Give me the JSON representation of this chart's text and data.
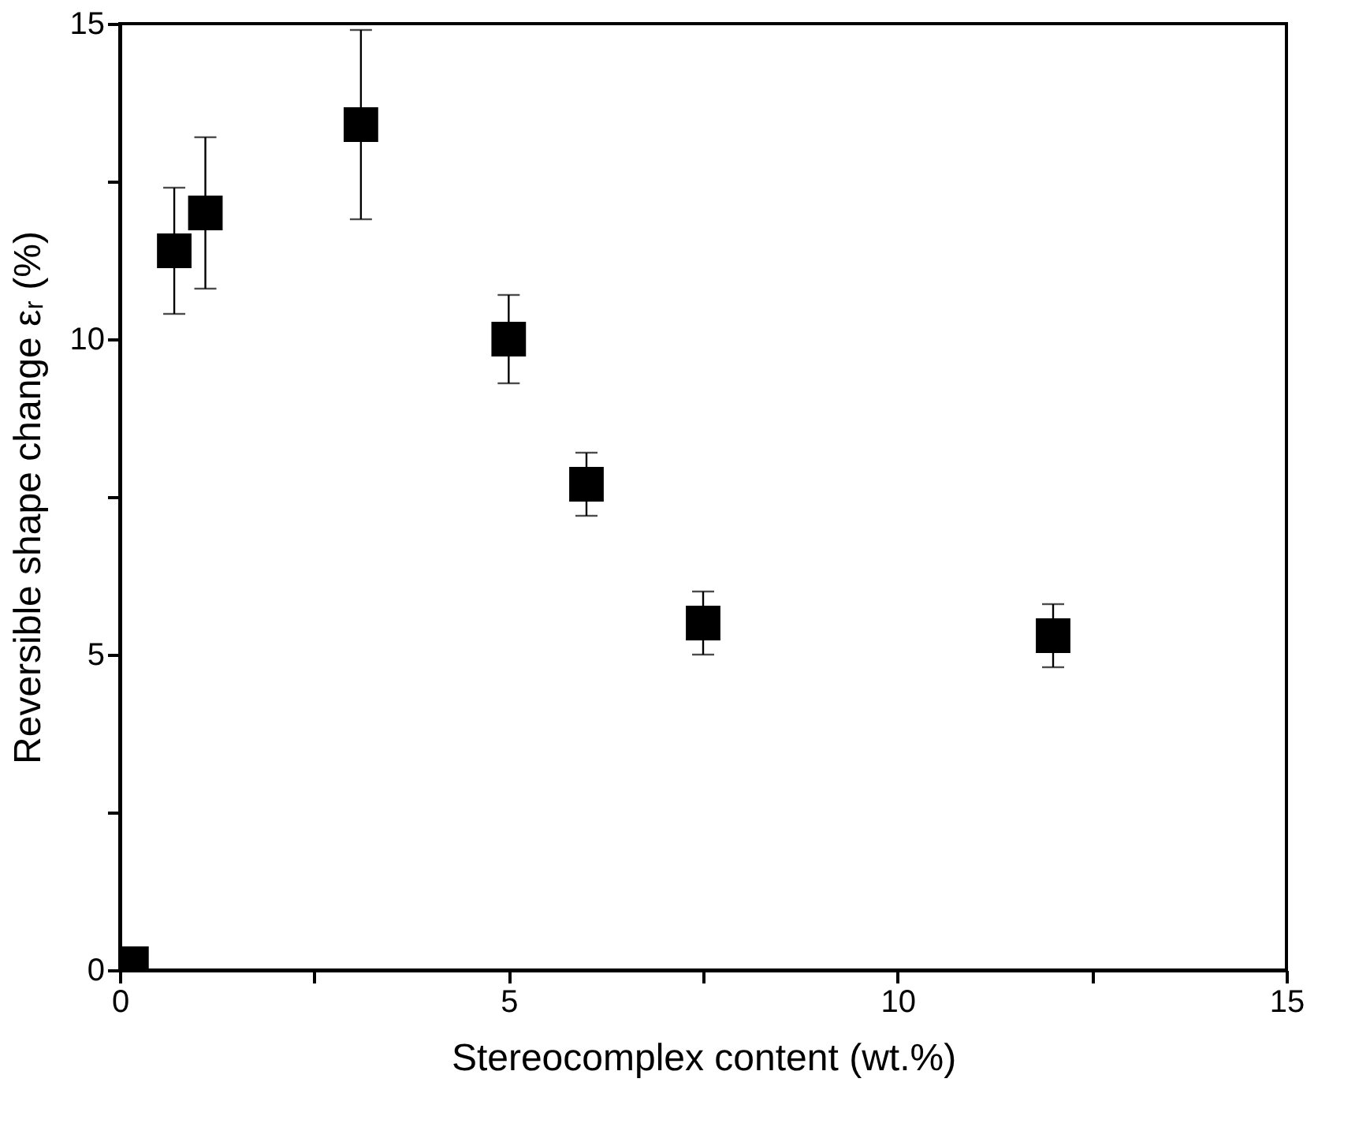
{
  "chart_data": {
    "type": "scatter",
    "xlabel": "Stereocomplex content (wt.%)",
    "ylabel": "Reversible shape change εᵣ (%)",
    "x": [
      0.15,
      0.7,
      1.1,
      3.1,
      5.0,
      6.0,
      7.5,
      12.0
    ],
    "series": [
      {
        "color": "#000000",
        "values": [
          0.1,
          11.4,
          12.0,
          13.4,
          10.0,
          7.7,
          5.5,
          5.3
        ],
        "errors": [
          null,
          1.0,
          1.2,
          1.5,
          0.7,
          0.5,
          0.5,
          0.5
        ]
      }
    ],
    "xlim": [
      0,
      15
    ],
    "ylim": [
      0,
      15
    ],
    "xticks": [
      0,
      {
        "value": 2.5,
        "label": null
      },
      5,
      {
        "value": 7.5,
        "label": null
      },
      10,
      {
        "value": 12.5,
        "label": null
      },
      15
    ],
    "yticks": [
      0,
      {
        "value": 2.5,
        "label": null
      },
      5,
      {
        "value": 7.5,
        "label": null
      },
      10,
      {
        "value": 12.5,
        "label": null
      },
      15
    ],
    "marker": "square",
    "grid": false
  }
}
